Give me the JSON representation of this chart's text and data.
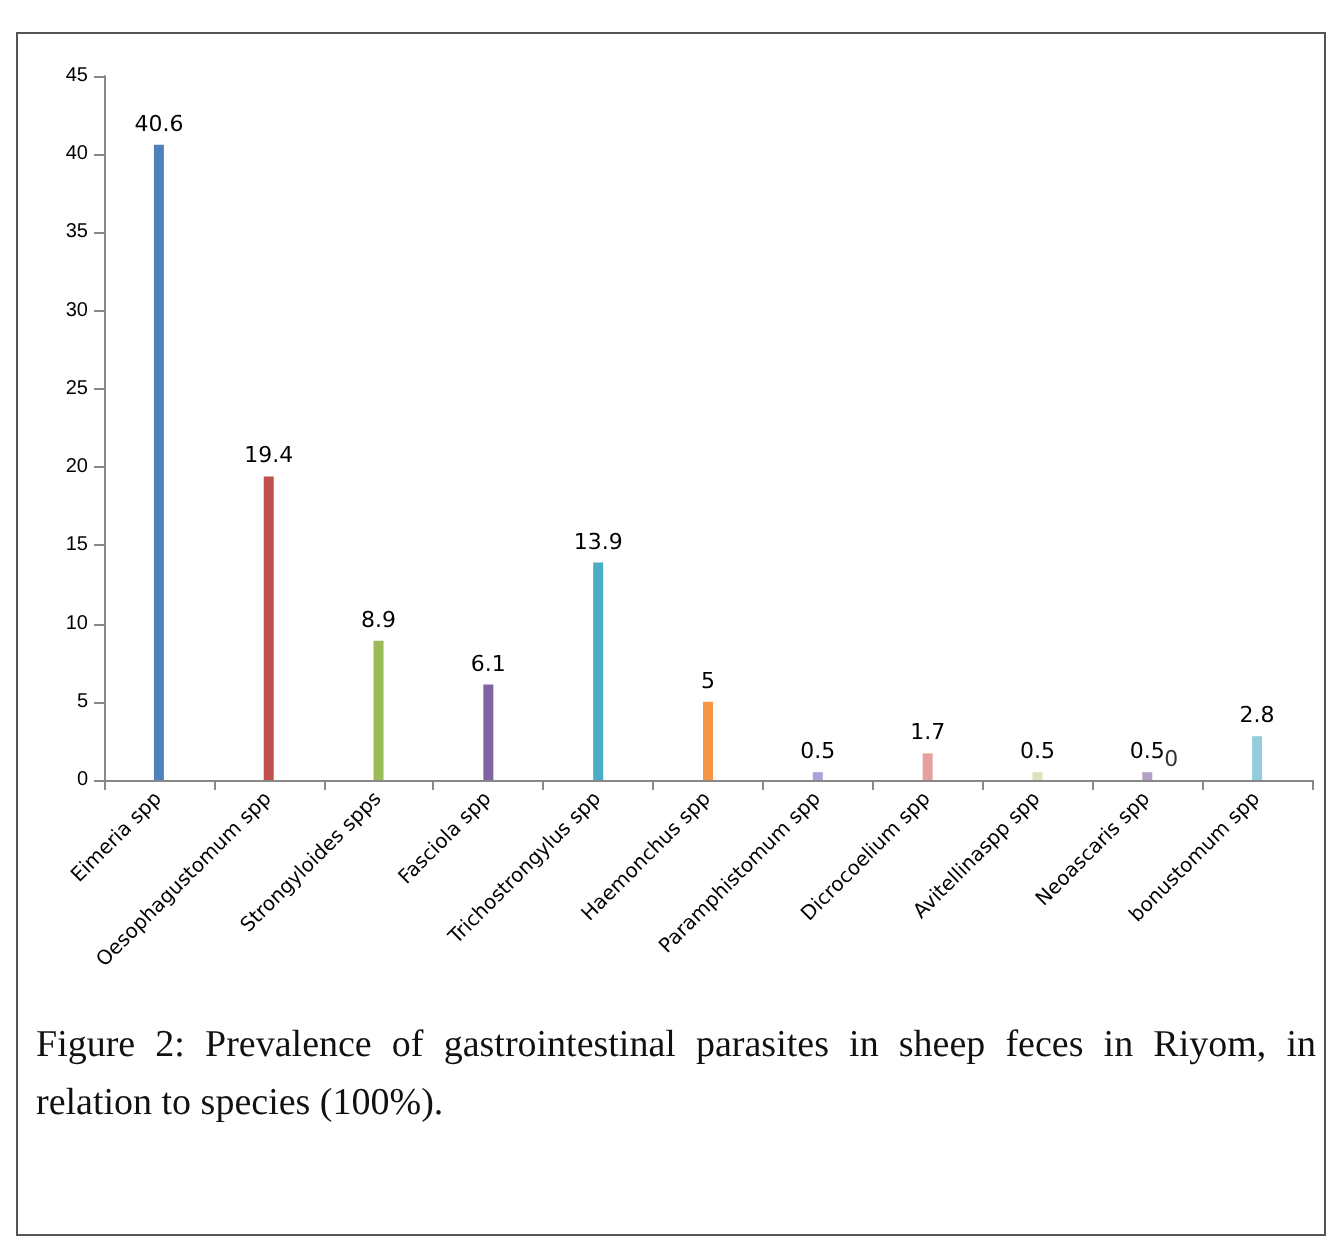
{
  "chart_data": {
    "type": "bar",
    "categories": [
      "Eimeria spp",
      "Oesophagustomum spp",
      "Strongyloides spps",
      "Fasciola spp",
      "Trichostrongylus spp",
      "Haemonchus spp",
      "Paramphistomum spp",
      "Dicrocoelium spp",
      "Avitellinaspp spp",
      "Neoascaris spp",
      "bonustomum spp"
    ],
    "values": [
      40.6,
      19.4,
      8.9,
      6.1,
      13.9,
      5,
      0.5,
      1.7,
      0.5,
      0.5,
      2.8
    ],
    "colors": [
      "#4f81bd",
      "#c0504d",
      "#9bbb59",
      "#8064a2",
      "#4bacc6",
      "#f79646",
      "#a5a5d8",
      "#e6a0a0",
      "#d7e4bd",
      "#b3a2c7",
      "#93cddd"
    ],
    "data_labels": true,
    "ylim": [
      0,
      45
    ],
    "yticks": [
      0,
      5,
      10,
      15,
      20,
      25,
      30,
      35,
      40,
      45
    ],
    "annotations": [
      {
        "text": "0",
        "x": "Neoascaris spp",
        "y": 0
      },
      "Figure 2: Prevalence of gastrointestinal parasites in sheep feces in Riyom, in relation to species (100%)."
    ]
  }
}
